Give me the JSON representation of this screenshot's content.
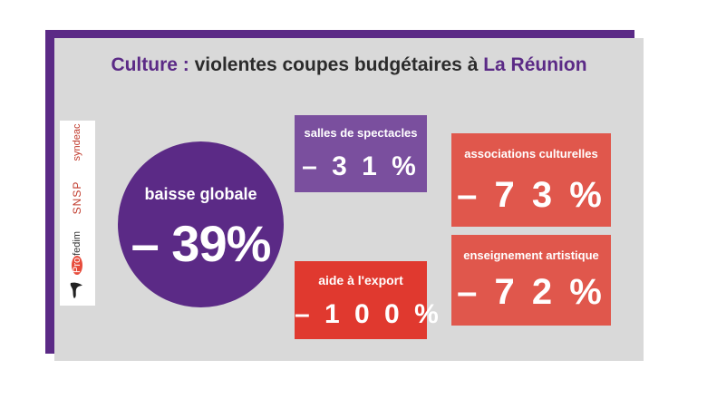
{
  "title": {
    "part1": "Culture : ",
    "part2": "violentes coupes budgétaires à ",
    "part3": "La Réunion"
  },
  "logos": {
    "syndeac": "syndeac",
    "snsp": "SNSP",
    "profedim_pro": "Pro",
    "profedim_rest": "fedim"
  },
  "global": {
    "label": "baisse globale",
    "value": "– 39%"
  },
  "boxes": {
    "salles": {
      "label": "salles de spectacles",
      "value": "– 3 1 %"
    },
    "export": {
      "label": "aide à l'export",
      "value": "– 1 0 0 %"
    },
    "associations": {
      "label": "associations culturelles",
      "value": "– 7 3 %"
    },
    "enseignement": {
      "label": "enseignement artistique",
      "value": "– 7 2 %"
    }
  },
  "colors": {
    "purple": "#5b2a86",
    "lightPurple": "#7a4f9e",
    "red": "#e0392f",
    "salmon": "#e0574c",
    "card": "#d9d9d9"
  }
}
